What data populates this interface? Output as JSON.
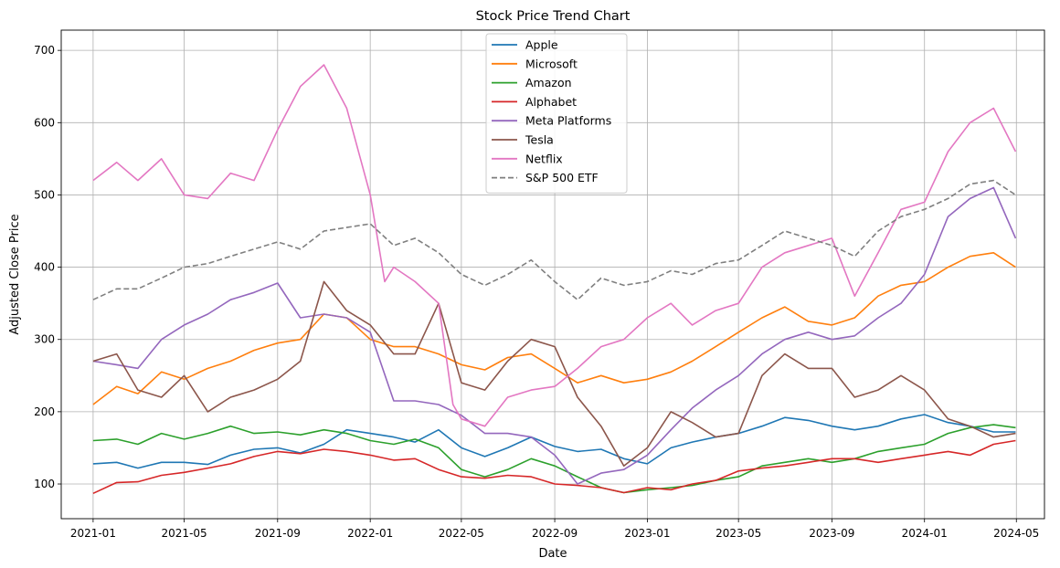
{
  "chart_data": {
    "type": "line",
    "title": "Stock Price Trend Chart",
    "xlabel": "Date",
    "ylabel": "Adjusted Close Price",
    "xlim": [
      "2020-11-20",
      "2024-06-07"
    ],
    "ylim": [
      52,
      728
    ],
    "x_ticks": [
      "2021-01",
      "2021-05",
      "2021-09",
      "2022-01",
      "2022-05",
      "2022-09",
      "2023-01",
      "2023-05",
      "2023-09",
      "2024-01",
      "2024-05"
    ],
    "y_ticks": [
      100,
      200,
      300,
      400,
      500,
      600,
      700
    ],
    "grid": true,
    "legend_position": "upper center",
    "series": [
      {
        "name": "Apple",
        "color": "#1f77b4",
        "dash": "",
        "x": [
          "2021-01-01",
          "2021-02-01",
          "2021-03-01",
          "2021-04-01",
          "2021-05-01",
          "2021-06-01",
          "2021-07-01",
          "2021-08-01",
          "2021-09-01",
          "2021-10-01",
          "2021-11-01",
          "2021-12-01",
          "2022-01-01",
          "2022-02-01",
          "2022-03-01",
          "2022-04-01",
          "2022-05-01",
          "2022-06-01",
          "2022-07-01",
          "2022-08-01",
          "2022-09-01",
          "2022-10-01",
          "2022-11-01",
          "2022-12-01",
          "2023-01-01",
          "2023-02-01",
          "2023-03-01",
          "2023-04-01",
          "2023-05-01",
          "2023-06-01",
          "2023-07-01",
          "2023-08-01",
          "2023-09-01",
          "2023-10-01",
          "2023-11-01",
          "2023-12-01",
          "2024-01-01",
          "2024-02-01",
          "2024-03-01",
          "2024-04-01",
          "2024-04-30"
        ],
        "y": [
          128,
          130,
          122,
          130,
          130,
          127,
          140,
          148,
          150,
          143,
          155,
          175,
          170,
          165,
          158,
          175,
          150,
          138,
          150,
          165,
          152,
          145,
          148,
          135,
          128,
          150,
          158,
          165,
          170,
          180,
          192,
          188,
          180,
          175,
          180,
          190,
          196,
          185,
          180,
          172,
          172
        ]
      },
      {
        "name": "Microsoft",
        "color": "#ff7f0e",
        "dash": "",
        "x": [
          "2021-01-01",
          "2021-02-01",
          "2021-03-01",
          "2021-04-01",
          "2021-05-01",
          "2021-06-01",
          "2021-07-01",
          "2021-08-01",
          "2021-09-01",
          "2021-10-01",
          "2021-11-01",
          "2021-12-01",
          "2022-01-01",
          "2022-02-01",
          "2022-03-01",
          "2022-04-01",
          "2022-05-01",
          "2022-06-01",
          "2022-07-01",
          "2022-08-01",
          "2022-09-01",
          "2022-10-01",
          "2022-11-01",
          "2022-12-01",
          "2023-01-01",
          "2023-02-01",
          "2023-03-01",
          "2023-04-01",
          "2023-05-01",
          "2023-06-01",
          "2023-07-01",
          "2023-08-01",
          "2023-09-01",
          "2023-10-01",
          "2023-11-01",
          "2023-12-01",
          "2024-01-01",
          "2024-02-01",
          "2024-03-01",
          "2024-04-01",
          "2024-04-30"
        ],
        "y": [
          210,
          235,
          225,
          255,
          245,
          260,
          270,
          285,
          295,
          300,
          335,
          330,
          300,
          290,
          290,
          280,
          265,
          258,
          275,
          280,
          260,
          240,
          250,
          240,
          245,
          255,
          270,
          290,
          310,
          330,
          345,
          325,
          320,
          330,
          360,
          375,
          380,
          400,
          415,
          420,
          400
        ]
      },
      {
        "name": "Amazon",
        "color": "#2ca02c",
        "dash": "",
        "x": [
          "2021-01-01",
          "2021-02-01",
          "2021-03-01",
          "2021-04-01",
          "2021-05-01",
          "2021-06-01",
          "2021-07-01",
          "2021-08-01",
          "2021-09-01",
          "2021-10-01",
          "2021-11-01",
          "2021-12-01",
          "2022-01-01",
          "2022-02-01",
          "2022-03-01",
          "2022-04-01",
          "2022-05-01",
          "2022-06-01",
          "2022-07-01",
          "2022-08-01",
          "2022-09-01",
          "2022-10-01",
          "2022-11-01",
          "2022-12-01",
          "2023-01-01",
          "2023-02-01",
          "2023-03-01",
          "2023-04-01",
          "2023-05-01",
          "2023-06-01",
          "2023-07-01",
          "2023-08-01",
          "2023-09-01",
          "2023-10-01",
          "2023-11-01",
          "2023-12-01",
          "2024-01-01",
          "2024-02-01",
          "2024-03-01",
          "2024-04-01",
          "2024-04-30"
        ],
        "y": [
          160,
          162,
          155,
          170,
          162,
          170,
          180,
          170,
          172,
          168,
          175,
          170,
          160,
          155,
          162,
          150,
          120,
          110,
          120,
          135,
          125,
          110,
          95,
          88,
          92,
          95,
          98,
          105,
          110,
          125,
          130,
          135,
          130,
          135,
          145,
          150,
          155,
          170,
          178,
          182,
          178
        ]
      },
      {
        "name": "Alphabet",
        "color": "#d62728",
        "dash": "",
        "x": [
          "2021-01-01",
          "2021-02-01",
          "2021-03-01",
          "2021-04-01",
          "2021-05-01",
          "2021-06-01",
          "2021-07-01",
          "2021-08-01",
          "2021-09-01",
          "2021-10-01",
          "2021-11-01",
          "2021-12-01",
          "2022-01-01",
          "2022-02-01",
          "2022-03-01",
          "2022-04-01",
          "2022-05-01",
          "2022-06-01",
          "2022-07-01",
          "2022-08-01",
          "2022-09-01",
          "2022-10-01",
          "2022-11-01",
          "2022-12-01",
          "2023-01-01",
          "2023-02-01",
          "2023-03-01",
          "2023-04-01",
          "2023-05-01",
          "2023-06-01",
          "2023-07-01",
          "2023-08-01",
          "2023-09-01",
          "2023-10-01",
          "2023-11-01",
          "2023-12-01",
          "2024-01-01",
          "2024-02-01",
          "2024-03-01",
          "2024-04-01",
          "2024-04-30"
        ],
        "y": [
          87,
          102,
          103,
          112,
          116,
          122,
          128,
          138,
          145,
          142,
          148,
          145,
          140,
          133,
          135,
          120,
          110,
          108,
          112,
          110,
          100,
          98,
          95,
          88,
          95,
          92,
          100,
          105,
          118,
          122,
          125,
          130,
          135,
          135,
          130,
          135,
          140,
          145,
          140,
          155,
          160
        ]
      },
      {
        "name": "Meta Platforms",
        "color": "#9467bd",
        "dash": "",
        "x": [
          "2021-01-01",
          "2021-02-01",
          "2021-03-01",
          "2021-04-01",
          "2021-05-01",
          "2021-06-01",
          "2021-07-01",
          "2021-08-01",
          "2021-09-01",
          "2021-10-01",
          "2021-11-01",
          "2021-12-01",
          "2022-01-01",
          "2022-02-01",
          "2022-03-01",
          "2022-04-01",
          "2022-05-01",
          "2022-06-01",
          "2022-07-01",
          "2022-08-01",
          "2022-09-01",
          "2022-10-01",
          "2022-11-01",
          "2022-12-01",
          "2023-01-01",
          "2023-02-01",
          "2023-03-01",
          "2023-04-01",
          "2023-05-01",
          "2023-06-01",
          "2023-07-01",
          "2023-08-01",
          "2023-09-01",
          "2023-10-01",
          "2023-11-01",
          "2023-12-01",
          "2024-01-01",
          "2024-02-01",
          "2024-03-01",
          "2024-04-01",
          "2024-04-30"
        ],
        "y": [
          270,
          265,
          260,
          300,
          320,
          335,
          355,
          365,
          378,
          330,
          335,
          330,
          310,
          215,
          215,
          210,
          195,
          170,
          170,
          165,
          140,
          100,
          115,
          120,
          140,
          175,
          205,
          230,
          250,
          280,
          300,
          310,
          300,
          305,
          330,
          350,
          390,
          470,
          495,
          510,
          440
        ]
      },
      {
        "name": "Tesla",
        "color": "#8c564b",
        "dash": "",
        "x": [
          "2021-01-01",
          "2021-02-01",
          "2021-03-01",
          "2021-04-01",
          "2021-05-01",
          "2021-06-01",
          "2021-07-01",
          "2021-08-01",
          "2021-09-01",
          "2021-10-01",
          "2021-11-01",
          "2021-12-01",
          "2022-01-01",
          "2022-02-01",
          "2022-03-01",
          "2022-04-01",
          "2022-05-01",
          "2022-06-01",
          "2022-07-01",
          "2022-08-01",
          "2022-09-01",
          "2022-10-01",
          "2022-11-01",
          "2022-12-01",
          "2023-01-01",
          "2023-02-01",
          "2023-03-01",
          "2023-04-01",
          "2023-05-01",
          "2023-06-01",
          "2023-07-01",
          "2023-08-01",
          "2023-09-01",
          "2023-10-01",
          "2023-11-01",
          "2023-12-01",
          "2024-01-01",
          "2024-02-01",
          "2024-03-01",
          "2024-04-01",
          "2024-04-30"
        ],
        "y": [
          270,
          280,
          230,
          220,
          250,
          200,
          220,
          230,
          245,
          270,
          380,
          340,
          320,
          280,
          280,
          350,
          240,
          230,
          270,
          300,
          290,
          220,
          180,
          125,
          150,
          200,
          185,
          165,
          170,
          250,
          280,
          260,
          260,
          220,
          230,
          250,
          230,
          190,
          180,
          165,
          170
        ]
      },
      {
        "name": "Netflix",
        "color": "#e377c2",
        "dash": "",
        "x": [
          "2021-01-01",
          "2021-02-01",
          "2021-03-01",
          "2021-04-01",
          "2021-05-01",
          "2021-06-01",
          "2021-07-01",
          "2021-08-01",
          "2021-09-01",
          "2021-10-01",
          "2021-11-01",
          "2021-12-01",
          "2022-01-01",
          "2022-01-20",
          "2022-02-01",
          "2022-03-01",
          "2022-04-01",
          "2022-04-20",
          "2022-05-01",
          "2022-06-01",
          "2022-07-01",
          "2022-08-01",
          "2022-09-01",
          "2022-10-01",
          "2022-11-01",
          "2022-12-01",
          "2023-01-01",
          "2023-02-01",
          "2023-03-01",
          "2023-04-01",
          "2023-05-01",
          "2023-06-01",
          "2023-07-01",
          "2023-08-01",
          "2023-09-01",
          "2023-10-01",
          "2023-11-01",
          "2023-12-01",
          "2024-01-01",
          "2024-02-01",
          "2024-03-01",
          "2024-04-01",
          "2024-04-30"
        ],
        "y": [
          520,
          545,
          520,
          550,
          500,
          495,
          530,
          520,
          590,
          650,
          680,
          620,
          500,
          380,
          400,
          380,
          350,
          210,
          190,
          180,
          220,
          230,
          235,
          260,
          290,
          300,
          330,
          350,
          320,
          340,
          350,
          400,
          420,
          430,
          440,
          360,
          420,
          480,
          490,
          560,
          600,
          620,
          560
        ]
      },
      {
        "name": "S&P 500 ETF",
        "color": "#7f7f7f",
        "dash": "6,3",
        "x": [
          "2021-01-01",
          "2021-02-01",
          "2021-03-01",
          "2021-04-01",
          "2021-05-01",
          "2021-06-01",
          "2021-07-01",
          "2021-08-01",
          "2021-09-01",
          "2021-10-01",
          "2021-11-01",
          "2021-12-01",
          "2022-01-01",
          "2022-02-01",
          "2022-03-01",
          "2022-04-01",
          "2022-05-01",
          "2022-06-01",
          "2022-07-01",
          "2022-08-01",
          "2022-09-01",
          "2022-10-01",
          "2022-11-01",
          "2022-12-01",
          "2023-01-01",
          "2023-02-01",
          "2023-03-01",
          "2023-04-01",
          "2023-05-01",
          "2023-06-01",
          "2023-07-01",
          "2023-08-01",
          "2023-09-01",
          "2023-10-01",
          "2023-11-01",
          "2023-12-01",
          "2024-01-01",
          "2024-02-01",
          "2024-03-01",
          "2024-04-01",
          "2024-04-30"
        ],
        "y": [
          355,
          370,
          370,
          385,
          400,
          405,
          415,
          425,
          435,
          425,
          450,
          455,
          460,
          430,
          440,
          420,
          390,
          375,
          390,
          410,
          380,
          355,
          385,
          375,
          380,
          395,
          390,
          405,
          410,
          430,
          450,
          440,
          430,
          415,
          450,
          470,
          480,
          495,
          515,
          520,
          500
        ]
      }
    ]
  }
}
